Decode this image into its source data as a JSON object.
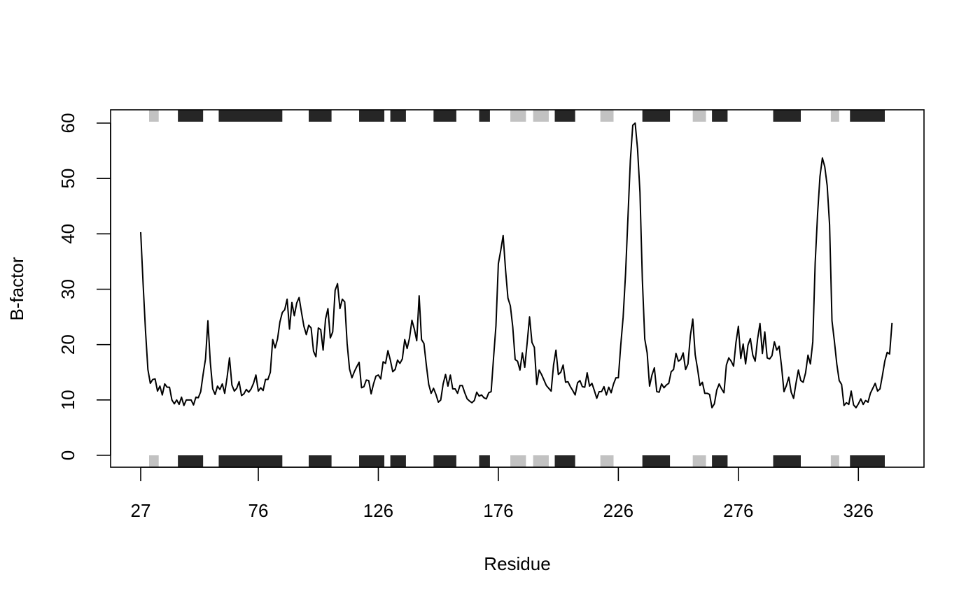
{
  "chart_data": {
    "type": "line",
    "title": "",
    "xlabel": "Residue",
    "ylabel": "B-factor",
    "xlim": [
      27,
      347
    ],
    "ylim": [
      0,
      62
    ],
    "x_ticks": [
      27,
      76,
      126,
      176,
      226,
      276,
      326
    ],
    "y_ticks": [
      0,
      10,
      20,
      30,
      40,
      50,
      60
    ],
    "grid": false,
    "legend": "none",
    "line_color": "#000000",
    "x_start": 27,
    "values": [
      40.3,
      31,
      22.5,
      15.5,
      13,
      13.7,
      13.8,
      11.6,
      12.5,
      10.9,
      12.9,
      12.3,
      12.3,
      10,
      9.3,
      10,
      9.2,
      10.5,
      9,
      10,
      10,
      10,
      9.1,
      10.5,
      10.4,
      11.5,
      14.6,
      17.4,
      24.3,
      16.8,
      12,
      11,
      12.5,
      11.9,
      12.9,
      11.2,
      14.1,
      17.6,
      12.7,
      11.6,
      12.1,
      13.3,
      10.8,
      11.1,
      11.9,
      11.4,
      12,
      13,
      14.5,
      11.6,
      12.2,
      11.7,
      13.7,
      13.7,
      15,
      20.9,
      19.4,
      21,
      24.1,
      25.8,
      26.3,
      28.2,
      22.8,
      27.6,
      25.2,
      27.5,
      28.5,
      25.8,
      23.3,
      21.8,
      23.5,
      23,
      18.8,
      17.8,
      23,
      22.7,
      19,
      24.6,
      26.5,
      21.2,
      22.3,
      29.8,
      31,
      26.5,
      28.2,
      27.7,
      20.2,
      15.6,
      14,
      15.1,
      16,
      16.8,
      12.2,
      12.4,
      13.6,
      13.5,
      11.1,
      12.9,
      14.3,
      14.5,
      13.8,
      16.9,
      16.6,
      18.9,
      17.2,
      15.1,
      15.5,
      17.2,
      16.6,
      17.4,
      20.9,
      19.3,
      21.2,
      24.4,
      22.8,
      20.7,
      28.8,
      20.9,
      20.2,
      16.3,
      12.8,
      11.2,
      12.1,
      11,
      9.6,
      10,
      12.9,
      14.6,
      12.5,
      14.5,
      12,
      12,
      11.2,
      12.6,
      12.6,
      11.3,
      10.2,
      9.8,
      9.5,
      9.9,
      11.4,
      10.7,
      10.9,
      10.4,
      10.2,
      11.3,
      11.5,
      17.6,
      23.4,
      34.6,
      37,
      39.7,
      33.5,
      28.4,
      27,
      23.2,
      17.3,
      17,
      15.4,
      18.5,
      15.9,
      20.3,
      25,
      20.4,
      19.5,
      12.8,
      15.4,
      14.6,
      13.6,
      12.6,
      12.1,
      11.6,
      16.3,
      19,
      14.6,
      15,
      16.3,
      13.2,
      13.3,
      12.4,
      11.7,
      10.9,
      13.1,
      13.5,
      12.4,
      12.3,
      14.9,
      12.5,
      13,
      11.7,
      10.3,
      11.5,
      11.5,
      12.4,
      10.9,
      12.3,
      11.3,
      12.9,
      14,
      14,
      19.9,
      25,
      32.8,
      43,
      53.3,
      59.6,
      60,
      55.3,
      47.5,
      31.7,
      21,
      18.5,
      12.5,
      14.5,
      15.8,
      11.5,
      11.4,
      12.9,
      12.2,
      12.7,
      13,
      15.1,
      15.5,
      18.4,
      17,
      17.3,
      18.5,
      15.5,
      16.5,
      21.6,
      24.6,
      18.2,
      15.6,
      12.6,
      13.2,
      11.2,
      11.2,
      11,
      8.6,
      9.3,
      11.8,
      12.9,
      12,
      11.3,
      16.3,
      17.6,
      17,
      16.1,
      20.4,
      23.3,
      17.5,
      20.1,
      16.5,
      19.9,
      21.1,
      18.1,
      17,
      21,
      23.8,
      18.4,
      22.3,
      17.6,
      17.4,
      18,
      20.5,
      19,
      19.7,
      16,
      11.5,
      12.6,
      14.1,
      11.4,
      10.3,
      13,
      15.4,
      13.5,
      13.2,
      14.9,
      18.1,
      16.5,
      20.5,
      34.8,
      43.6,
      50.4,
      53.7,
      52.1,
      48.7,
      41.6,
      24.3,
      20.6,
      16.5,
      13.5,
      12.8,
      9,
      9.5,
      9.2,
      11.6,
      9.1,
      8.6,
      9.3,
      10.2,
      9.2,
      9.9,
      9.6,
      11.2,
      12.1,
      13,
      11.6,
      12,
      14.4,
      17,
      18.6,
      18.3,
      23.9
    ],
    "secondary_structure": {
      "helix_color": "#262626",
      "strand_color": "#c2c2c2",
      "blocks": [
        {
          "type": "strand",
          "start": 30.5,
          "end": 34.5
        },
        {
          "type": "helix",
          "start": 42.5,
          "end": 53
        },
        {
          "type": "helix",
          "start": 59.5,
          "end": 86
        },
        {
          "type": "helix",
          "start": 97,
          "end": 106.5
        },
        {
          "type": "helix",
          "start": 118,
          "end": 128.5
        },
        {
          "type": "helix",
          "start": 131,
          "end": 137.5
        },
        {
          "type": "helix",
          "start": 149,
          "end": 158.5
        },
        {
          "type": "helix",
          "start": 168,
          "end": 172.5
        },
        {
          "type": "strand",
          "start": 181,
          "end": 187.5
        },
        {
          "type": "strand",
          "start": 190.5,
          "end": 197
        },
        {
          "type": "helix",
          "start": 199.5,
          "end": 208
        },
        {
          "type": "strand",
          "start": 218.5,
          "end": 224
        },
        {
          "type": "helix",
          "start": 236,
          "end": 247.5
        },
        {
          "type": "strand",
          "start": 257,
          "end": 262.5
        },
        {
          "type": "helix",
          "start": 265,
          "end": 271.5
        },
        {
          "type": "helix",
          "start": 290.5,
          "end": 302
        },
        {
          "type": "strand",
          "start": 314.5,
          "end": 318
        },
        {
          "type": "helix",
          "start": 322.5,
          "end": 337
        }
      ]
    }
  }
}
